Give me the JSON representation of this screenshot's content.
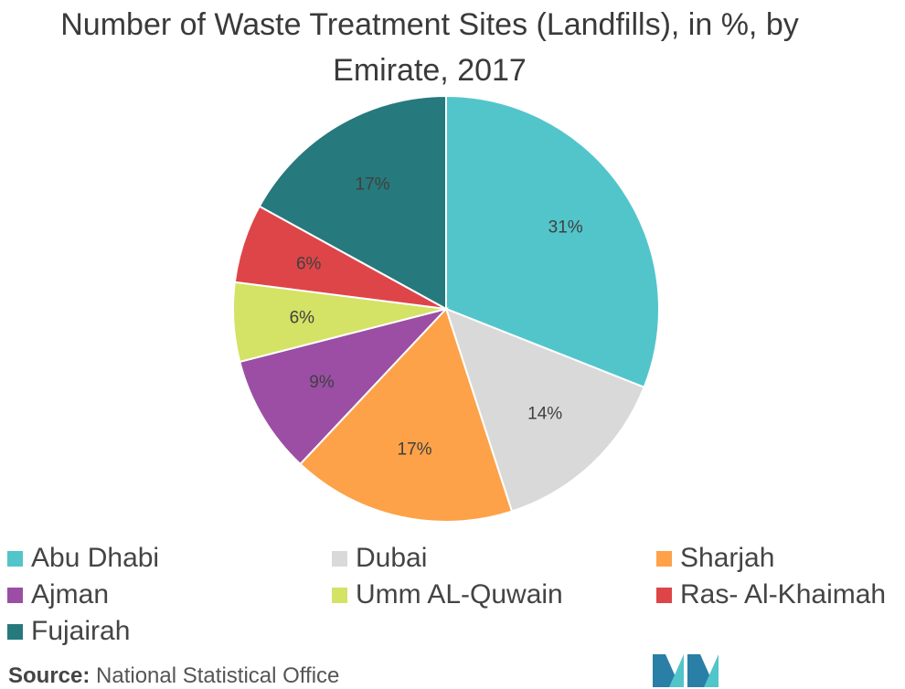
{
  "chart_data": {
    "type": "pie",
    "title": "Number of Waste Treatment Sites (Landfills), in %, by Emirate, 2017",
    "title_lines": [
      "Number of Waste Treatment Sites (Landfills), in %, by",
      "Emirate, 2017"
    ],
    "categories": [
      "Abu Dhabi",
      "Dubai",
      "Sharjah",
      "Ajman",
      "Umm AL-Quwain",
      "Ras- Al-Khaimah",
      "Fujairah"
    ],
    "values": [
      31,
      14,
      17,
      9,
      6,
      6,
      17
    ],
    "data_labels": [
      "31%",
      "14%",
      "17%",
      "9%",
      "6%",
      "6%",
      "17%"
    ],
    "colors": [
      "#52c5cb",
      "#d9d9d9",
      "#fda248",
      "#9b4ea4",
      "#d4e266",
      "#de4548",
      "#26797c"
    ],
    "legend_position": "bottom",
    "start_angle": "12 o'clock",
    "direction": "clockwise"
  },
  "legend": {
    "items": [
      "Abu Dhabi",
      "Dubai",
      "Sharjah",
      "Ajman",
      "Umm AL-Quwain",
      "Ras- Al-Khaimah",
      "Fujairah"
    ]
  },
  "source": {
    "label": "Source:",
    "text": "National Statistical Office"
  },
  "logo": {
    "icon": "mordor-intelligence-logo-icon",
    "colors": [
      "#2a7fa6",
      "#52c5cb"
    ]
  }
}
